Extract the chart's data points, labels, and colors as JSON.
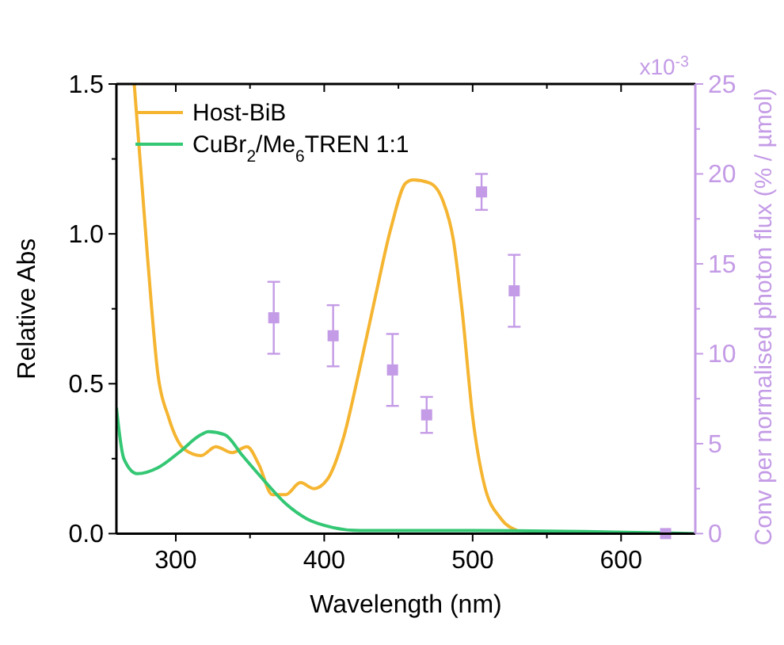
{
  "chart_data": {
    "type": "line",
    "xlabel": "Wavelength (nm)",
    "ylabel": "Relative Abs",
    "y2label": "Conv per normalised photon flux (% / µmol)",
    "xlim": [
      260,
      650
    ],
    "xticks": [
      300,
      {
        "value": 350,
        "label": null
      },
      400,
      {
        "value": 450,
        "label": null
      },
      500,
      {
        "value": 550,
        "label": null
      },
      600
    ],
    "ylim": [
      0,
      1.5
    ],
    "yticks": [
      "0.0",
      {
        "value": 0.25,
        "label": null
      },
      {
        "value": 0.5,
        "label": "0.5"
      },
      {
        "value": 0.75,
        "label": null
      },
      {
        "value": 1,
        "label": "1.0"
      },
      {
        "value": 1.25,
        "label": null
      },
      {
        "value": 1.5,
        "label": "1.5"
      }
    ],
    "y2lim": [
      0,
      25
    ],
    "y2ticks": [
      0,
      {
        "value": 2.5,
        "label": null
      },
      5,
      {
        "value": 7.5,
        "label": null
      },
      10,
      {
        "value": 12.5,
        "label": null
      },
      15,
      {
        "value": 17.5,
        "label": null
      },
      20,
      {
        "value": 22.5,
        "label": null
      },
      25
    ],
    "annotations": [
      "x10$^{-3}$"
    ],
    "legend": "top left",
    "grid": false,
    "line_style": "solid",
    "series": [
      {
        "name": "Host-BiB",
        "color": "#f5b531",
        "x": [
          272,
          281,
          288,
          295,
          306,
          317,
          327,
          338,
          348,
          356,
          365,
          374,
          384,
          393,
          402,
          413,
          423,
          434,
          445,
          455,
          460,
          471,
          480,
          487,
          493,
          500,
          508,
          519,
          530
        ],
        "values": [
          1.5,
          0.92,
          0.53,
          0.39,
          0.28,
          0.26,
          0.29,
          0.27,
          0.29,
          0.23,
          0.13,
          0.13,
          0.17,
          0.15,
          0.18,
          0.32,
          0.53,
          0.78,
          1.02,
          1.17,
          1.18,
          1.17,
          1.11,
          0.98,
          0.74,
          0.39,
          0.16,
          0.05,
          0.01
        ]
      },
      {
        "name": "CuBr$_{2}$/Me$_{6}$TREN 1:1",
        "color": "#34c774",
        "x": [
          260,
          265,
          274,
          288,
          302,
          317,
          322,
          333,
          345,
          359,
          374,
          388,
          406,
          424,
          500,
          650
        ],
        "values": [
          0.42,
          0.25,
          0.2,
          0.22,
          0.27,
          0.33,
          0.34,
          0.33,
          0.26,
          0.18,
          0.1,
          0.05,
          0.02,
          0.01,
          0.01,
          0
        ]
      },
      {
        "type": "scatter",
        "axis": "y2",
        "marker": "square",
        "color": "#c49be6",
        "x": [
          366,
          406,
          446,
          469,
          506,
          528,
          630
        ],
        "values": [
          12,
          11,
          9.1,
          6.6,
          19,
          13.5,
          0
        ],
        "errors": [
          2,
          1.7,
          2,
          1,
          1,
          2,
          null
        ]
      }
    ]
  }
}
